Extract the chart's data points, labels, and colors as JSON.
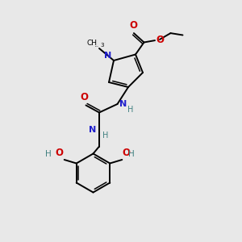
{
  "bg_color": "#e8e8e8",
  "bond_color": "#000000",
  "N_color": "#2020cc",
  "O_color": "#cc0000",
  "H_color": "#408080",
  "figsize": [
    3.0,
    3.0
  ],
  "dpi": 100,
  "xlim": [
    0,
    10
  ],
  "ylim": [
    0,
    10
  ],
  "lw": 1.4,
  "lw2": 1.1
}
